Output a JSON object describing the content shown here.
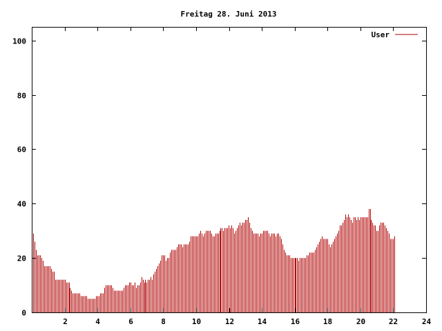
{
  "chart_data": {
    "type": "bar",
    "title": "Freitag 28. Juni 2013",
    "xlabel": "",
    "ylabel": "",
    "xlim": [
      0,
      24
    ],
    "ylim": [
      0,
      105
    ],
    "x_ticks": [
      "2",
      "4",
      "6",
      "8",
      "10",
      "12",
      "14",
      "16",
      "18",
      "20",
      "22",
      "24"
    ],
    "y_ticks": [
      "0",
      "20",
      "40",
      "60",
      "80",
      "100"
    ],
    "grid": false,
    "legend_position": "top-right",
    "colors": {
      "series": "#b00000",
      "axis": "#000000"
    },
    "series": [
      {
        "name": "User",
        "x_start": 0,
        "x_step": 0.0833,
        "values": [
          32,
          29,
          26,
          23,
          21,
          21,
          21,
          20,
          19,
          17,
          17,
          17,
          17,
          17,
          16,
          15,
          15,
          12,
          12,
          12,
          12,
          12,
          12,
          12,
          12,
          11,
          11,
          11,
          9,
          8,
          7,
          7,
          7,
          7,
          7,
          7,
          6,
          6,
          6,
          6,
          6,
          5,
          5,
          5,
          5,
          5,
          5,
          6,
          6,
          6,
          7,
          7,
          7,
          9,
          10,
          10,
          10,
          10,
          10,
          9,
          8,
          8,
          8,
          8,
          8,
          8,
          8,
          9,
          10,
          10,
          10,
          11,
          11,
          10,
          10,
          11,
          9,
          10,
          10,
          11,
          13,
          12,
          11,
          12,
          11,
          12,
          12,
          13,
          12,
          14,
          15,
          16,
          17,
          18,
          19,
          21,
          21,
          21,
          19,
          20,
          20,
          22,
          23,
          23,
          23,
          23,
          24,
          25,
          25,
          25,
          24,
          25,
          25,
          25,
          25,
          26,
          28,
          28,
          28,
          28,
          28,
          28,
          29,
          30,
          29,
          28,
          29,
          30,
          30,
          30,
          30,
          29,
          28,
          28,
          29,
          29,
          29,
          30,
          31,
          31,
          30,
          31,
          31,
          31,
          32,
          31,
          32,
          31,
          29,
          30,
          31,
          32,
          33,
          32,
          33,
          33,
          34,
          34,
          35,
          33,
          31,
          30,
          29,
          29,
          29,
          29,
          28,
          29,
          29,
          30,
          30,
          30,
          30,
          29,
          28,
          29,
          29,
          29,
          28,
          29,
          29,
          28,
          27,
          25,
          23,
          22,
          21,
          21,
          21,
          20,
          20,
          20,
          20,
          20,
          20,
          19,
          20,
          20,
          20,
          20,
          20,
          21,
          21,
          22,
          22,
          22,
          22,
          23,
          24,
          25,
          26,
          27,
          28,
          27,
          27,
          27,
          27,
          25,
          24,
          25,
          26,
          27,
          28,
          29,
          30,
          32,
          32,
          33,
          34,
          36,
          35,
          36,
          35,
          34,
          33,
          35,
          35,
          34,
          35,
          34,
          35,
          35,
          35,
          35,
          35,
          35,
          38,
          38,
          34,
          33,
          32,
          32,
          30,
          30,
          32,
          33,
          33,
          33,
          32,
          31,
          30,
          29,
          27,
          27,
          27,
          28
        ]
      }
    ]
  }
}
